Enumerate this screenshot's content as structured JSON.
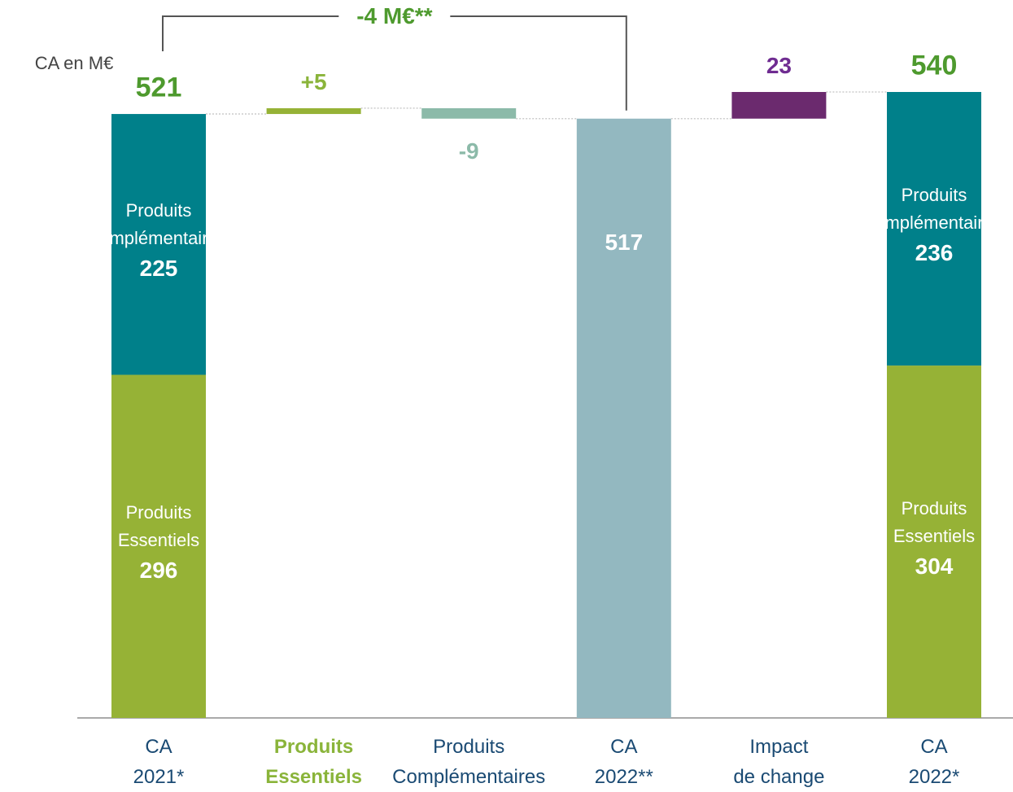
{
  "unit_label": "CA en M€",
  "chart_data": {
    "type": "waterfall",
    "categories": [
      [
        "CA",
        "2021*"
      ],
      [
        "Produits",
        "Essentiels"
      ],
      [
        "Produits",
        "Complémentaires"
      ],
      [
        "CA",
        "2022**"
      ],
      [
        "Impact",
        "de change"
      ],
      [
        "CA",
        "2022*"
      ]
    ],
    "steps": [
      {
        "kind": "total",
        "total": 521,
        "label_color": "#4e9a2e",
        "segments": [
          {
            "name": "Produits Essentiels",
            "value": 296,
            "color": "#96b236"
          },
          {
            "name": "Produits complémentaires",
            "value": 225,
            "color": "#00808a"
          }
        ]
      },
      {
        "kind": "delta",
        "value": 5,
        "value_label": "+5",
        "color": "#96b236",
        "label_color": "#8ab43a"
      },
      {
        "kind": "delta",
        "value": -9,
        "color": "#8cbaa9",
        "label_color": "#8cbaa9"
      },
      {
        "kind": "total",
        "value": 517,
        "color": "#93b8c0",
        "label_color": "#ffffff"
      },
      {
        "kind": "delta",
        "value": 23,
        "color": "#6b2a6e",
        "label_color": "#6f2c91"
      },
      {
        "kind": "total",
        "total": 540,
        "label_color": "#4e9a2e",
        "segments": [
          {
            "name": "Produits Essentiels",
            "value": 304,
            "color": "#96b236"
          },
          {
            "name": "Produits complémentaires",
            "value": 236,
            "color": "#00808a"
          }
        ]
      }
    ],
    "bracket": {
      "label": "-4 M€**"
    }
  }
}
